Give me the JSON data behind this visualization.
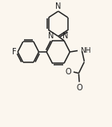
{
  "bg_color": "#fbf6ee",
  "bond_color": "#222222",
  "text_color": "#222222",
  "font_size": 6.5,
  "bond_width": 1.1,
  "dbo": 0.012,
  "figsize": [
    1.4,
    1.59
  ],
  "dpi": 100,
  "xlim": [
    0.0,
    1.0
  ],
  "ylim": [
    0.0,
    1.0
  ]
}
